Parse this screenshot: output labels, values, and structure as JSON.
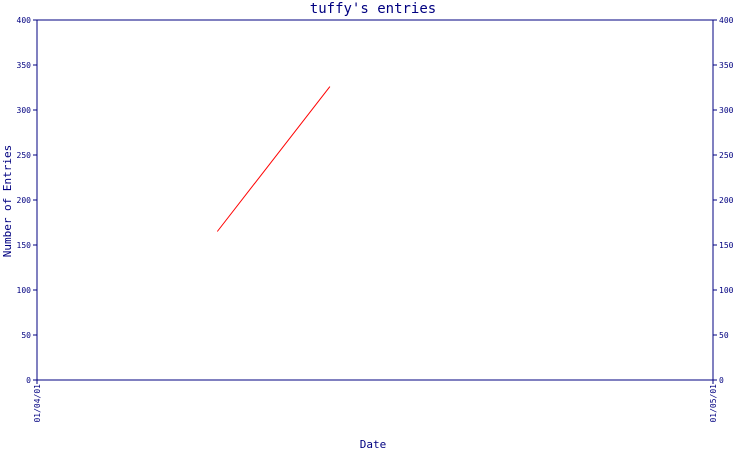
{
  "chart_data": {
    "type": "line",
    "title": "tuffy's entries",
    "xlabel": "Date",
    "ylabel": "Number of Entries",
    "x_tick_labels": [
      "01/04/01",
      "01/05/01"
    ],
    "xlim": [
      "01/04/01",
      "01/05/01"
    ],
    "ylim": [
      0,
      400
    ],
    "y_ticks": [
      0,
      50,
      100,
      150,
      200,
      250,
      300,
      350,
      400
    ],
    "right_axis": true,
    "grid": false,
    "series": [
      {
        "color": "#ff0000",
        "x": [
          "01/04/09",
          "01/04/14"
        ],
        "y": [
          165,
          326
        ]
      }
    ],
    "colors": {
      "axis": "#000080",
      "line": "#ff0000",
      "background": "#ffffff"
    }
  }
}
